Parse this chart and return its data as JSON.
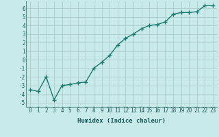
{
  "x": [
    0,
    1,
    2,
    3,
    4,
    5,
    6,
    7,
    8,
    9,
    10,
    11,
    12,
    13,
    14,
    15,
    16,
    17,
    18,
    19,
    20,
    21,
    22,
    23
  ],
  "y": [
    -3.5,
    -3.7,
    -2.0,
    -4.7,
    -3.0,
    -2.9,
    -2.7,
    -2.6,
    -1.0,
    -0.3,
    0.5,
    1.7,
    2.5,
    3.0,
    3.6,
    4.0,
    4.1,
    4.4,
    5.3,
    5.5,
    5.5,
    5.6,
    6.3,
    6.3
  ],
  "line_color": "#1a7a6e",
  "marker": "+",
  "background_color": "#c8eaea",
  "grid_color": "#b0cccc",
  "xlabel": "Humidex (Indice chaleur)",
  "ylim": [
    -5.5,
    6.8
  ],
  "xlim": [
    -0.5,
    23.5
  ],
  "yticks": [
    -5,
    -4,
    -3,
    -2,
    -1,
    0,
    1,
    2,
    3,
    4,
    5,
    6
  ],
  "xticks": [
    0,
    1,
    2,
    3,
    4,
    5,
    6,
    7,
    8,
    9,
    10,
    11,
    12,
    13,
    14,
    15,
    16,
    17,
    18,
    19,
    20,
    21,
    22,
    23
  ],
  "xlabel_fontsize": 6.5,
  "tick_fontsize": 5.5,
  "line_width": 1.0,
  "marker_size": 4
}
